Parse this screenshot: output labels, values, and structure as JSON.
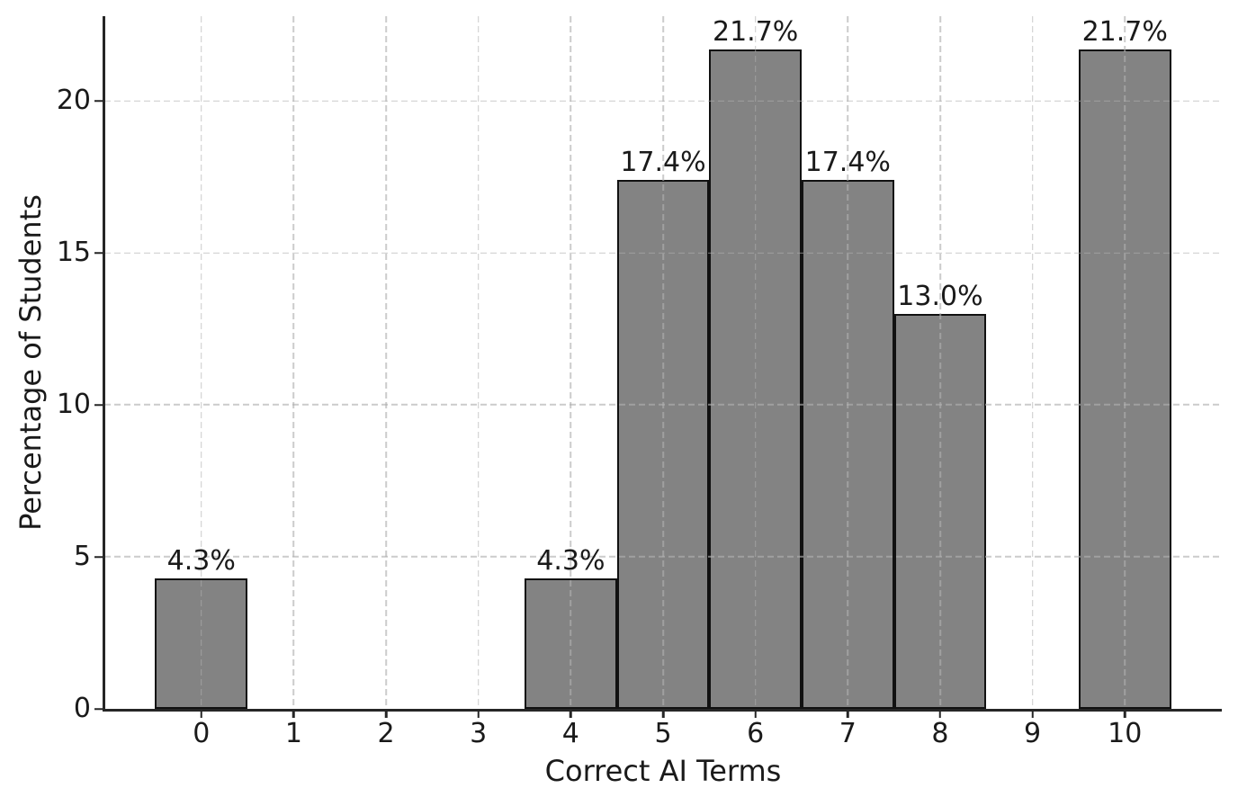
{
  "chart_data": {
    "type": "bar",
    "title": "",
    "xlabel": "Correct AI Terms",
    "ylabel": "Percentage of Students",
    "categories": [
      0,
      1,
      2,
      3,
      4,
      5,
      6,
      7,
      8,
      9,
      10
    ],
    "values": [
      4.3,
      0,
      0,
      0,
      4.3,
      17.4,
      21.7,
      17.4,
      13.0,
      0,
      21.7
    ],
    "bar_labels": [
      "4.3%",
      "",
      "",
      "",
      "4.3%",
      "17.4%",
      "21.7%",
      "17.4%",
      "13.0%",
      "",
      "21.7%"
    ],
    "x_tick_labels": [
      "0",
      "1",
      "2",
      "3",
      "4",
      "5",
      "6",
      "7",
      "8",
      "9",
      "10"
    ],
    "yticks": [
      0,
      5,
      10,
      15,
      20
    ],
    "y_tick_labels": [
      "0",
      "5",
      "10",
      "15",
      "20"
    ],
    "xlim": [
      -1.05,
      11.05
    ],
    "ylim": [
      0,
      22.785
    ],
    "bar_width": 1.0,
    "grid": true,
    "grid_style": "dashed",
    "legend_position": "none",
    "colors": {
      "bar_fill": "#838383",
      "bar_edge": "#111111",
      "grid": "#b0b0b0",
      "grid_rgba": "rgba(176,176,176,0.65)",
      "axis": "#262626",
      "text": "#1a1a1a",
      "background": "#ffffff"
    }
  }
}
